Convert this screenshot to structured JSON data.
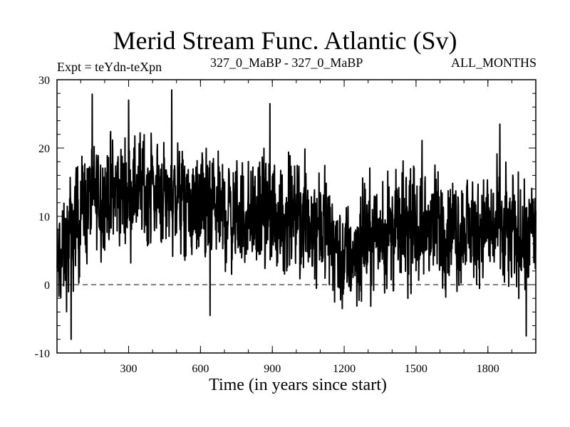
{
  "chart_data": {
    "type": "line",
    "title": "Merid Stream Func. Atlantic (Sv)",
    "experiment_label": "Expt = teYdn-teXpn",
    "period_label": "327_0_MaBP - 327_0_MaBP",
    "season_label": "ALL_MONTHS",
    "xlabel": "Time (in years since start)",
    "ylabel": "",
    "xlim": [
      1,
      2000
    ],
    "ylim": [
      -10,
      30
    ],
    "x_ticks": [
      300,
      600,
      900,
      1200,
      1500,
      1800
    ],
    "y_ticks": [
      -10,
      0,
      10,
      20,
      30
    ],
    "x_tick_labels": [
      "300",
      "600",
      "900",
      "1200",
      "1500",
      "1800"
    ],
    "y_tick_labels": [
      "-10",
      "0",
      "10",
      "20",
      "30"
    ],
    "reference_line": {
      "y": 0,
      "style": "dashed"
    },
    "series": [
      {
        "name": "Merid Stream Func. Atlantic",
        "color": "#000000",
        "trend": {
          "x": [
            1,
            20,
            50,
            80,
            120,
            200,
            300,
            350,
            400,
            450,
            500,
            560,
            600,
            700,
            800,
            900,
            1000,
            1100,
            1150,
            1200,
            1250,
            1300,
            1400,
            1500,
            1600,
            1700,
            1800,
            1900,
            2000
          ],
          "y": [
            2.0,
            4.0,
            6.0,
            9.0,
            12.0,
            13.0,
            14.0,
            14.5,
            14.0,
            13.5,
            12.5,
            11.0,
            10.5,
            10.5,
            10.0,
            10.0,
            9.5,
            9.0,
            7.0,
            3.5,
            5.0,
            7.5,
            8.0,
            8.5,
            8.0,
            8.0,
            8.5,
            7.5,
            7.0
          ]
        },
        "noise_amplitude": 4.2,
        "min": -8.0,
        "max": 28.5,
        "peaks": [
          {
            "x": 60,
            "y": -8.0
          },
          {
            "x": 300,
            "y": 27.0
          },
          {
            "x": 480,
            "y": 28.5
          },
          {
            "x": 640,
            "y": -4.5
          },
          {
            "x": 890,
            "y": 26.5
          },
          {
            "x": 1960,
            "y": -7.5
          },
          {
            "x": 1850,
            "y": 23.5
          }
        ]
      }
    ]
  }
}
